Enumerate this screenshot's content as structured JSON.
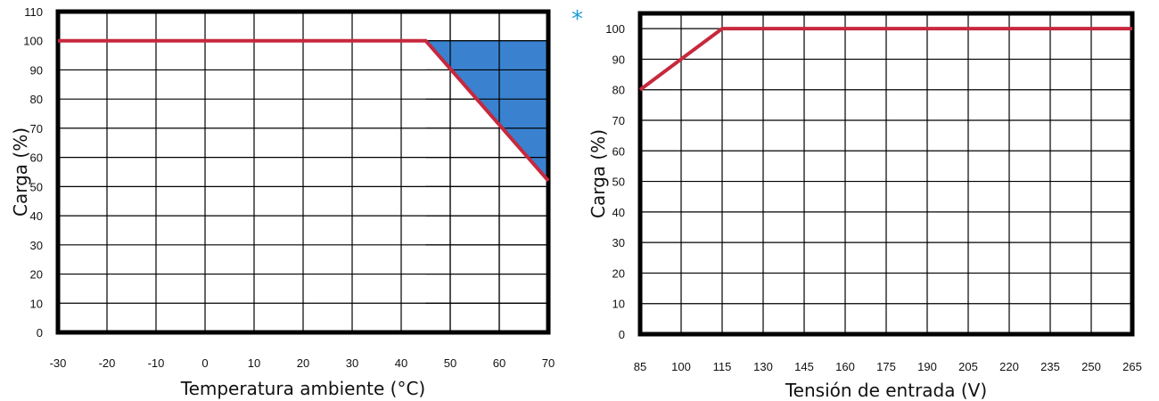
{
  "colors": {
    "line": "#c7283d",
    "area": "#3a82cf",
    "grid": "#000000",
    "frame": "#000000",
    "marker": "#1e9bd7"
  },
  "marker": "*",
  "chart_data": [
    {
      "type": "line",
      "title": "",
      "xlabel": "Temperatura ambiente (°C)",
      "ylabel": "Carga (%)",
      "xlim": [
        -30,
        70
      ],
      "ylim": [
        0,
        110
      ],
      "x_ticks": [
        -30,
        -20,
        -10,
        0,
        10,
        20,
        30,
        40,
        50,
        60,
        70
      ],
      "y_ticks": [
        0,
        10,
        20,
        30,
        40,
        50,
        60,
        70,
        80,
        90,
        100,
        110
      ],
      "grid": true,
      "series": [
        {
          "x": [
            -30,
            45,
            70
          ],
          "y": [
            100,
            100,
            52
          ]
        }
      ],
      "shaded_region": {
        "x": [
          45,
          70,
          70
        ],
        "y": [
          100,
          100,
          52
        ]
      }
    },
    {
      "type": "line",
      "title": "",
      "xlabel": "Tensión de entrada (V)",
      "ylabel": "Carga (%)",
      "xlim": [
        85,
        265
      ],
      "ylim": [
        0,
        105
      ],
      "x_ticks": [
        85,
        100,
        115,
        130,
        145,
        160,
        175,
        190,
        205,
        220,
        235,
        250,
        265
      ],
      "y_ticks": [
        0,
        10,
        20,
        30,
        40,
        50,
        60,
        70,
        80,
        90,
        100
      ],
      "grid": true,
      "series": [
        {
          "x": [
            85,
            115,
            265
          ],
          "y": [
            80,
            100,
            100
          ]
        }
      ]
    }
  ]
}
